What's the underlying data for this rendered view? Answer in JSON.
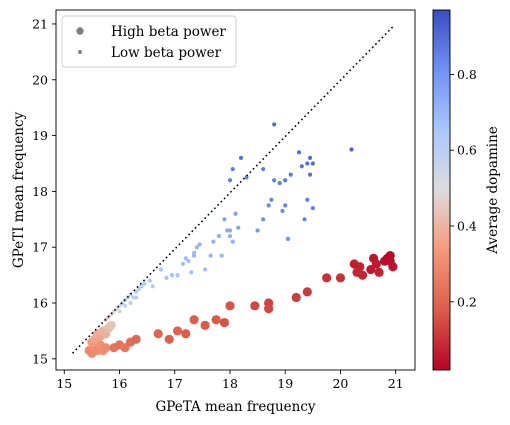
{
  "chart_data": {
    "type": "scatter",
    "xlabel": "GPeTA mean frequency",
    "ylabel": "GPeTI mean frequency",
    "xlim": [
      14.85,
      21.35
    ],
    "ylim": [
      14.8,
      21.25
    ],
    "xticks": [
      15,
      16,
      17,
      18,
      19,
      20,
      21
    ],
    "yticks": [
      15,
      16,
      17,
      18,
      19,
      20,
      21
    ],
    "legend": {
      "position": "top-left",
      "entries": [
        {
          "label": "High beta power",
          "marker": "large",
          "color": "#808080"
        },
        {
          "label": "Low beta power",
          "marker": "small",
          "color": "#808080"
        }
      ]
    },
    "reference_line": {
      "style": "dotted",
      "from": [
        15.15,
        15.1
      ],
      "to": [
        20.95,
        20.95
      ],
      "color": "#000000"
    },
    "colorbar": {
      "label": "Average dopamine",
      "range": [
        0.02,
        0.97
      ],
      "ticks": [
        0.2,
        0.4,
        0.6,
        0.8
      ],
      "colormap": "coolwarm",
      "stops": [
        "#b40426",
        "#dc5d4a",
        "#f49a7b",
        "#dddcdc",
        "#aac7fd",
        "#6f92f3",
        "#3b4cc0"
      ]
    },
    "series": [
      {
        "marker": "large",
        "points": [
          [
            15.45,
            15.15,
            0.3
          ],
          [
            15.5,
            15.1,
            0.29
          ],
          [
            15.55,
            15.2,
            0.31
          ],
          [
            15.6,
            15.15,
            0.3
          ],
          [
            15.65,
            15.25,
            0.32
          ],
          [
            15.7,
            15.15,
            0.31
          ],
          [
            15.75,
            15.2,
            0.3
          ],
          [
            15.5,
            15.3,
            0.34
          ],
          [
            15.55,
            15.35,
            0.36
          ],
          [
            15.6,
            15.45,
            0.38
          ],
          [
            15.65,
            15.4,
            0.37
          ],
          [
            15.7,
            15.5,
            0.4
          ],
          [
            15.75,
            15.45,
            0.39
          ],
          [
            15.8,
            15.55,
            0.42
          ],
          [
            15.85,
            15.6,
            0.44
          ],
          [
            15.9,
            15.2,
            0.24
          ],
          [
            16.0,
            15.25,
            0.23
          ],
          [
            16.1,
            15.2,
            0.24
          ],
          [
            16.2,
            15.3,
            0.22
          ],
          [
            16.3,
            15.35,
            0.21
          ],
          [
            16.7,
            15.45,
            0.2
          ],
          [
            16.9,
            15.35,
            0.19
          ],
          [
            17.05,
            15.5,
            0.19
          ],
          [
            17.2,
            15.45,
            0.18
          ],
          [
            17.35,
            15.7,
            0.18
          ],
          [
            17.55,
            15.6,
            0.17
          ],
          [
            17.75,
            15.7,
            0.17
          ],
          [
            17.9,
            15.65,
            0.16
          ],
          [
            18.0,
            15.95,
            0.16
          ],
          [
            18.45,
            15.95,
            0.14
          ],
          [
            18.7,
            16.0,
            0.13
          ],
          [
            18.7,
            15.9,
            0.14
          ],
          [
            19.2,
            16.1,
            0.12
          ],
          [
            19.4,
            16.2,
            0.11
          ],
          [
            19.75,
            16.45,
            0.1
          ],
          [
            20.0,
            16.45,
            0.1
          ],
          [
            20.25,
            16.7,
            0.07
          ],
          [
            20.35,
            16.65,
            0.07
          ],
          [
            20.3,
            16.55,
            0.08
          ],
          [
            20.4,
            16.5,
            0.08
          ],
          [
            20.55,
            16.6,
            0.06
          ],
          [
            20.6,
            16.8,
            0.05
          ],
          [
            20.65,
            16.7,
            0.06
          ],
          [
            20.7,
            16.55,
            0.07
          ],
          [
            20.8,
            16.75,
            0.04
          ],
          [
            20.85,
            16.8,
            0.03
          ],
          [
            20.9,
            16.85,
            0.03
          ],
          [
            20.95,
            16.65,
            0.05
          ],
          [
            20.9,
            16.75,
            0.04
          ]
        ]
      },
      {
        "marker": "small",
        "points": [
          [
            15.75,
            15.7,
            0.45
          ],
          [
            15.8,
            15.75,
            0.46
          ],
          [
            15.85,
            15.8,
            0.48
          ],
          [
            15.9,
            15.85,
            0.5
          ],
          [
            15.95,
            15.9,
            0.52
          ],
          [
            16.0,
            15.95,
            0.54
          ],
          [
            16.05,
            16.0,
            0.56
          ],
          [
            16.1,
            16.05,
            0.57
          ],
          [
            16.15,
            16.1,
            0.58
          ],
          [
            16.2,
            16.15,
            0.59
          ],
          [
            16.25,
            16.1,
            0.59
          ],
          [
            16.3,
            16.2,
            0.6
          ],
          [
            16.35,
            16.25,
            0.61
          ],
          [
            16.4,
            16.3,
            0.62
          ],
          [
            16.0,
            15.85,
            0.55
          ],
          [
            16.1,
            15.95,
            0.56
          ],
          [
            16.2,
            16.0,
            0.58
          ],
          [
            16.3,
            16.1,
            0.6
          ],
          [
            16.45,
            16.35,
            0.63
          ],
          [
            16.55,
            16.4,
            0.64
          ],
          [
            16.6,
            16.3,
            0.63
          ],
          [
            16.75,
            16.6,
            0.66
          ],
          [
            16.85,
            16.45,
            0.66
          ],
          [
            16.95,
            16.5,
            0.67
          ],
          [
            17.05,
            16.5,
            0.66
          ],
          [
            17.15,
            16.7,
            0.68
          ],
          [
            17.2,
            16.8,
            0.69
          ],
          [
            17.25,
            16.75,
            0.68
          ],
          [
            17.3,
            16.55,
            0.67
          ],
          [
            17.35,
            16.85,
            0.7
          ],
          [
            17.35,
            16.9,
            0.69
          ],
          [
            17.4,
            17.0,
            0.71
          ],
          [
            17.45,
            17.05,
            0.72
          ],
          [
            17.55,
            16.6,
            0.68
          ],
          [
            17.65,
            16.85,
            0.7
          ],
          [
            17.7,
            17.1,
            0.72
          ],
          [
            17.8,
            17.2,
            0.73
          ],
          [
            17.85,
            16.85,
            0.7
          ],
          [
            17.95,
            17.3,
            0.74
          ],
          [
            18.0,
            17.2,
            0.73
          ],
          [
            18.05,
            17.1,
            0.72
          ],
          [
            18.0,
            17.3,
            0.74
          ],
          [
            17.9,
            17.5,
            0.76
          ],
          [
            18.1,
            17.6,
            0.77
          ],
          [
            18.15,
            17.35,
            0.76
          ],
          [
            18.0,
            18.2,
            0.85
          ],
          [
            18.05,
            18.4,
            0.86
          ],
          [
            18.2,
            18.6,
            0.88
          ],
          [
            18.3,
            18.25,
            0.84
          ],
          [
            18.5,
            17.3,
            0.8
          ],
          [
            18.6,
            17.5,
            0.82
          ],
          [
            18.6,
            18.4,
            0.86
          ],
          [
            18.7,
            17.75,
            0.83
          ],
          [
            18.75,
            17.85,
            0.83
          ],
          [
            18.8,
            19.2,
            0.9
          ],
          [
            18.8,
            18.2,
            0.86
          ],
          [
            18.9,
            18.15,
            0.86
          ],
          [
            18.95,
            17.65,
            0.84
          ],
          [
            19.0,
            18.2,
            0.87
          ],
          [
            19.1,
            18.3,
            0.87
          ],
          [
            19.0,
            17.75,
            0.84
          ],
          [
            19.05,
            17.15,
            0.82
          ],
          [
            19.25,
            18.7,
            0.89
          ],
          [
            19.3,
            18.45,
            0.88
          ],
          [
            19.35,
            17.5,
            0.84
          ],
          [
            19.4,
            18.5,
            0.89
          ],
          [
            19.45,
            18.6,
            0.9
          ],
          [
            19.4,
            17.85,
            0.85
          ],
          [
            19.5,
            18.5,
            0.9
          ],
          [
            19.45,
            18.3,
            0.88
          ],
          [
            19.5,
            17.7,
            0.85
          ],
          [
            20.2,
            18.75,
            0.92
          ]
        ]
      }
    ]
  }
}
